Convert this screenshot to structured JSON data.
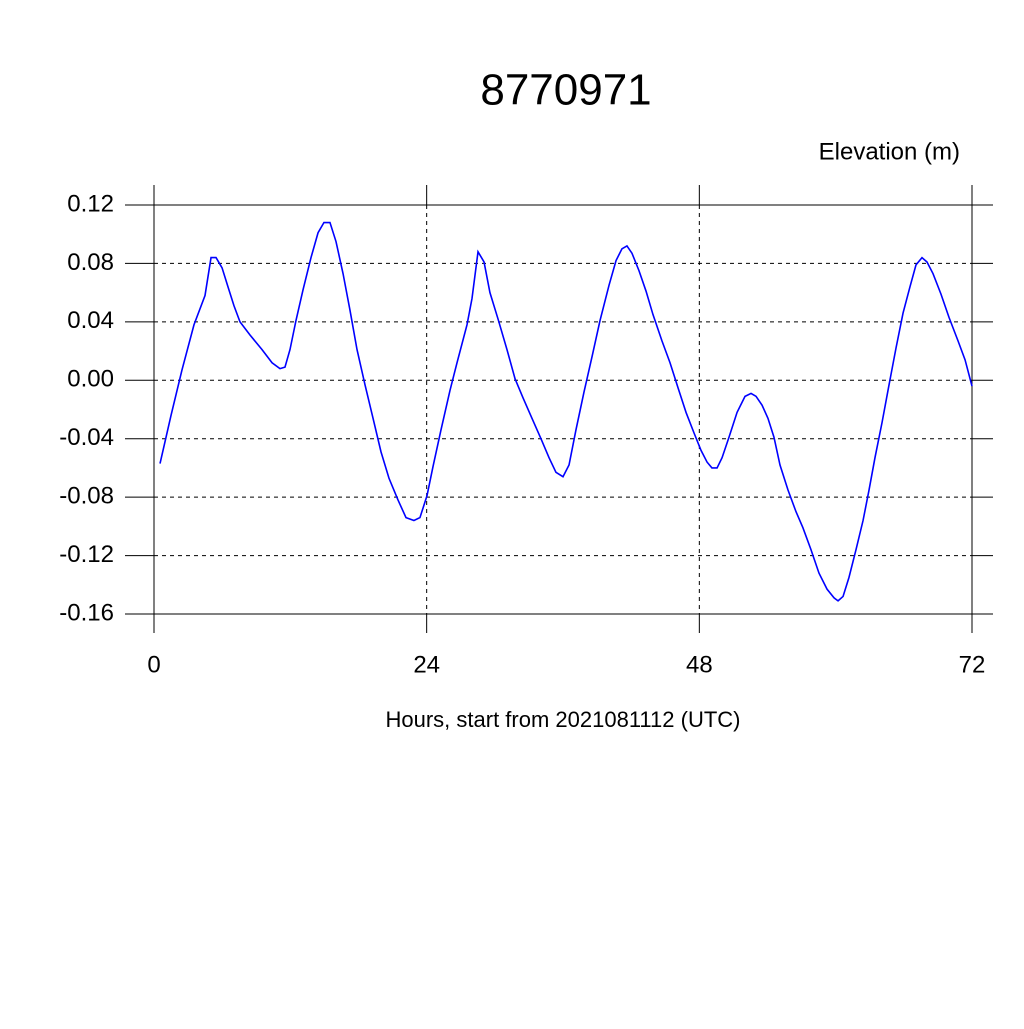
{
  "chart_data": {
    "type": "line",
    "title": "8770971",
    "y_axis_label": "Elevation (m)",
    "x_axis_label": "Hours, start from 2021081112 (UTC)",
    "xlim": [
      0,
      72
    ],
    "xticks": [
      0,
      24,
      48,
      72
    ],
    "ylim": [
      -0.16,
      0.12
    ],
    "yticks": [
      0.12,
      0.08,
      0.04,
      {
        "value": 0,
        "label": "0.00"
      },
      -0.04,
      -0.08,
      -0.12,
      -0.16
    ],
    "grid": true,
    "series": [
      {
        "color": "#0000ff",
        "x": [
          0.53,
          1.5,
          2.46,
          3.52,
          4.49,
          5.02,
          5.46,
          5.99,
          6.51,
          7.04,
          7.57,
          8.45,
          9.51,
          10.39,
          11.09,
          11.53,
          11.97,
          12.5,
          13.12,
          13.82,
          14.44,
          14.96,
          15.49,
          16.02,
          16.64,
          17.25,
          17.87,
          18.57,
          19.28,
          19.98,
          20.68,
          21.48,
          22.18,
          22.88,
          23.41,
          24.03,
          24.56,
          25.26,
          26.05,
          26.67,
          27.55,
          27.99,
          28.52,
          29.05,
          29.57,
          30.28,
          31.07,
          31.78,
          32.48,
          33.27,
          34.06,
          34.77,
          35.38,
          36.0,
          36.53,
          37.14,
          37.85,
          38.55,
          39.26,
          40.05,
          40.67,
          41.19,
          41.63,
          42.07,
          42.69,
          43.31,
          43.92,
          44.71,
          45.42,
          46.12,
          46.83,
          47.53,
          48.15,
          48.68,
          49.11,
          49.56,
          50.0,
          50.61,
          51.32,
          52.02,
          52.55,
          52.99,
          53.52,
          54.04,
          54.57,
          55.1,
          55.8,
          56.51,
          57.12,
          57.83,
          58.53,
          59.24,
          59.86,
          60.21,
          60.65,
          61.17,
          61.79,
          62.41,
          62.94,
          63.46,
          64.08,
          64.7,
          65.31,
          65.93,
          66.54,
          67.07,
          67.6,
          68.04,
          68.57,
          69.27,
          69.98,
          70.77,
          71.39,
          72.0
        ],
        "values": [
          -0.057,
          -0.024,
          0.007,
          0.038,
          0.058,
          0.084,
          0.084,
          0.077,
          0.064,
          0.051,
          0.04,
          0.031,
          0.021,
          0.012,
          0.008,
          0.009,
          0.021,
          0.041,
          0.062,
          0.084,
          0.101,
          0.108,
          0.108,
          0.095,
          0.073,
          0.048,
          0.021,
          -0.003,
          -0.026,
          -0.049,
          -0.067,
          -0.082,
          -0.094,
          -0.096,
          -0.094,
          -0.079,
          -0.059,
          -0.034,
          -0.007,
          0.012,
          0.038,
          0.056,
          0.088,
          0.081,
          0.06,
          0.042,
          0.021,
          0.001,
          -0.012,
          -0.026,
          -0.04,
          -0.053,
          -0.063,
          -0.066,
          -0.058,
          -0.034,
          -0.008,
          0.016,
          0.041,
          0.065,
          0.082,
          0.09,
          0.092,
          0.087,
          0.075,
          0.061,
          0.045,
          0.027,
          0.012,
          -0.005,
          -0.022,
          -0.036,
          -0.048,
          -0.056,
          -0.06,
          -0.06,
          -0.053,
          -0.039,
          -0.022,
          -0.011,
          -0.009,
          -0.011,
          -0.017,
          -0.026,
          -0.039,
          -0.058,
          -0.075,
          -0.09,
          -0.101,
          -0.116,
          -0.132,
          -0.143,
          -0.149,
          -0.151,
          -0.148,
          -0.135,
          -0.116,
          -0.096,
          -0.075,
          -0.053,
          -0.029,
          -0.003,
          0.022,
          0.046,
          0.064,
          0.079,
          0.084,
          0.081,
          0.073,
          0.059,
          0.043,
          0.027,
          0.014,
          -0.004
        ]
      }
    ]
  }
}
